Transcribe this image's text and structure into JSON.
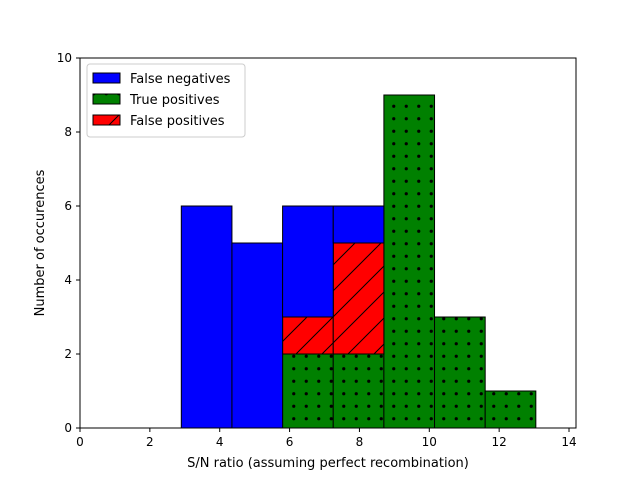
{
  "chart_data": {
    "type": "bar",
    "stacked": true,
    "xlabel": "S/N ratio (assuming perfect recombination)",
    "ylabel": "Number of occurences",
    "xlim": [
      0,
      14.2
    ],
    "ylim": [
      0,
      10
    ],
    "xticks": [
      0,
      2,
      4,
      6,
      8,
      10,
      12,
      14
    ],
    "yticks": [
      0,
      2,
      4,
      6,
      8,
      10
    ],
    "bin_edges": [
      2.9,
      4.35,
      5.8,
      7.25,
      8.7,
      10.15,
      11.6,
      13.05
    ],
    "grid": false,
    "legend_position": "upper-left",
    "series": [
      {
        "name": "True positives",
        "color": "#008000",
        "hatch": "dots",
        "values": [
          0,
          0,
          2,
          2,
          9,
          3,
          1
        ]
      },
      {
        "name": "False positives",
        "color": "#ff0000",
        "hatch": "slash",
        "values": [
          0,
          0,
          1,
          3,
          0,
          0,
          0
        ]
      },
      {
        "name": "False negatives",
        "color": "#0000ff",
        "hatch": "none",
        "values": [
          6,
          5,
          3,
          1,
          0,
          0,
          0
        ]
      }
    ],
    "legend_order": [
      "False negatives",
      "True positives",
      "False positives"
    ]
  }
}
